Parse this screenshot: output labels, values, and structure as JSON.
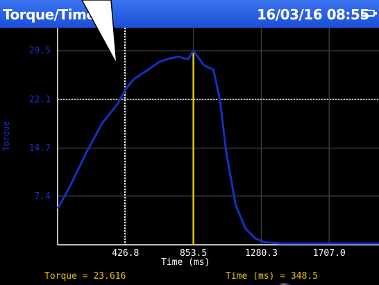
{
  "header": {
    "title": "Torque/Time",
    "datetime": "16/03/16 08:55",
    "battery_icon": "battery-icon"
  },
  "readouts": {
    "torque": "Torque = 23.616",
    "time": "Time (ms) = 348.5"
  },
  "chart_data": {
    "type": "line",
    "xlabel": "Time (ms)",
    "ylabel": "Torque",
    "x_ticks": [
      426.8,
      853.5,
      1280.3,
      1707.0
    ],
    "y_ticks": [
      7.4,
      14.7,
      22.1,
      29.5
    ],
    "xlim": [
      0,
      2020
    ],
    "ylim": [
      0,
      33
    ],
    "grid": true,
    "line_color": "#1530c0",
    "cursor_color": "#e6c800",
    "cursor_x": 853.5,
    "marker_x": 426.8,
    "marker_y": 22.1,
    "series": [
      {
        "x": [
          0,
          80,
          180,
          280,
          380,
          426,
          480,
          560,
          640,
          700,
          760,
          820,
          853,
          920,
          980,
          1020,
          1060,
          1120,
          1180,
          1240,
          1300,
          1400,
          1600,
          1800,
          2020
        ],
        "y": [
          5.5,
          9,
          14,
          18.5,
          21.5,
          23.6,
          25.2,
          26.5,
          27.8,
          28.3,
          28.6,
          28.2,
          29.5,
          27.3,
          26.6,
          22,
          14,
          6,
          2.5,
          1,
          0.4,
          0.2,
          0.2,
          0.2,
          0.2
        ]
      }
    ]
  }
}
